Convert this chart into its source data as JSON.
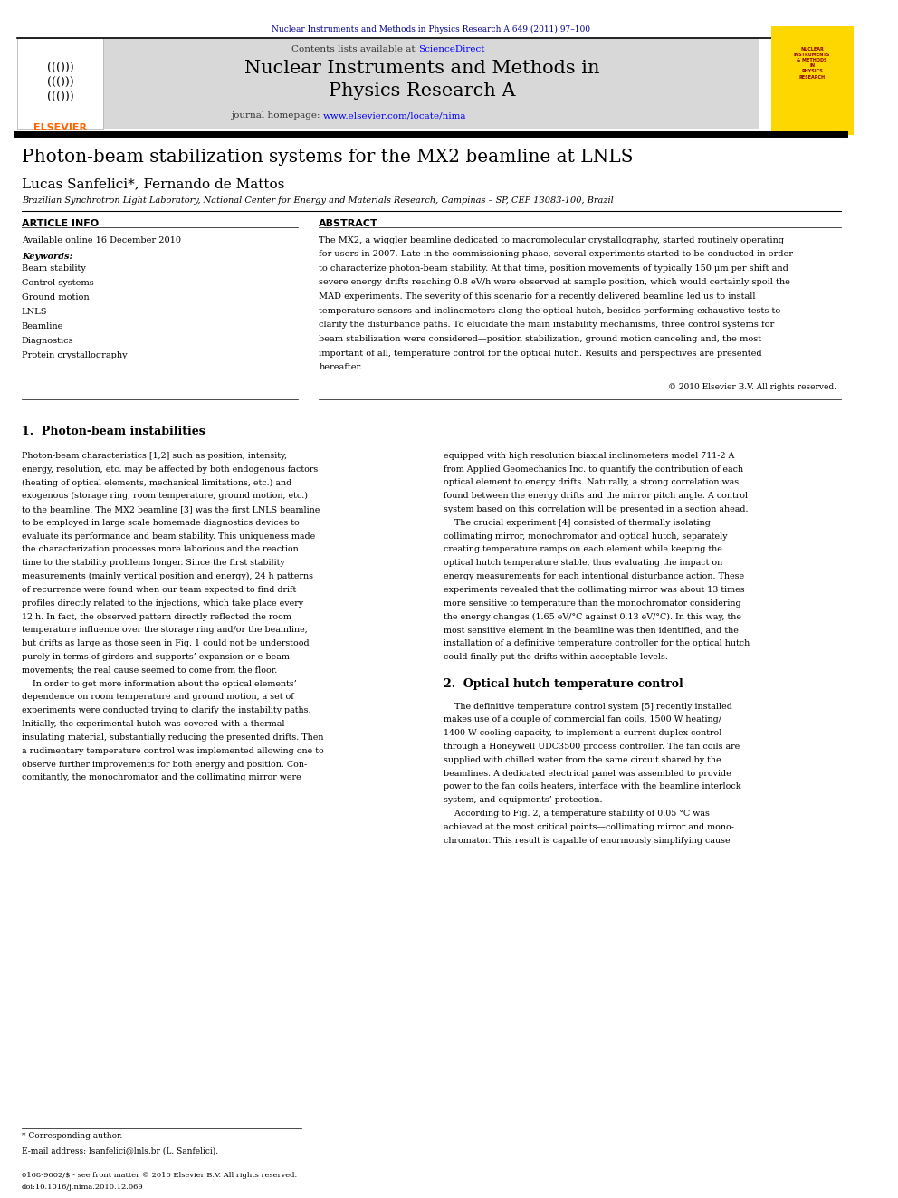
{
  "page_width": 9.92,
  "page_height": 13.23,
  "bg_color": "#ffffff",
  "header_journal_text": "Nuclear Instruments and Methods in Physics Research A 649 (2011) 97–100",
  "header_journal_color": "#00008B",
  "journal_header_bg": "#d8d8d8",
  "journal_title_line1": "Nuclear Instruments and Methods in",
  "journal_title_line2": "Physics Research A",
  "journal_homepage_static": "journal homepage: ",
  "journal_homepage_link": "www.elsevier.com/locate/nima",
  "paper_title": "Photon-beam stabilization systems for the MX2 beamline at LNLS",
  "authors": "Lucas Sanfelici*, Fernando de Mattos",
  "affiliation": "Brazilian Synchrotron Light Laboratory, National Center for Energy and Materials Research, Campinas – SP, CEP 13083-100, Brazil",
  "article_info_header": "ARTICLE INFO",
  "abstract_header": "ABSTRACT",
  "available_online": "Available online 16 December 2010",
  "keywords_label": "Keywords:",
  "keywords": [
    "Beam stability",
    "Control systems",
    "Ground motion",
    "LNLS",
    "Beamline",
    "Diagnostics",
    "Protein crystallography"
  ],
  "copyright": "© 2010 Elsevier B.V. All rights reserved.",
  "section1_title": "1.  Photon-beam instabilities",
  "section2_title": "2.  Optical hutch temperature control",
  "footnote_star": "* Corresponding author.",
  "footnote_email": "E-mail address: lsanfelici@lnls.br (L. Sanfelici).",
  "footer_issn": "0168-9002/$ - see front matter © 2010 Elsevier B.V. All rights reserved.",
  "footer_doi": "doi:10.1016/j.nima.2010.12.069",
  "link_color": "#0000FF",
  "ref_color": "#0000FF",
  "yellow_box_color": "#FFD700",
  "elsevier_orange": "#FF6600",
  "abstract_lines": [
    "The MX2, a wiggler beamline dedicated to macromolecular crystallography, started routinely operating",
    "for users in 2007. Late in the commissioning phase, several experiments started to be conducted in order",
    "to characterize photon-beam stability. At that time, position movements of typically 150 μm per shift and",
    "severe energy drifts reaching 0.8 eV/h were observed at sample position, which would certainly spoil the",
    "MAD experiments. The severity of this scenario for a recently delivered beamline led us to install",
    "temperature sensors and inclinometers along the optical hutch, besides performing exhaustive tests to",
    "clarify the disturbance paths. To elucidate the main instability mechanisms, three control systems for",
    "beam stabilization were considered—position stabilization, ground motion canceling and, the most",
    "important of all, temperature control for the optical hutch. Results and perspectives are presented",
    "hereafter."
  ],
  "col1_lines": [
    "Photon-beam characteristics [1,2] such as position, intensity,",
    "energy, resolution, etc. may be affected by both endogenous factors",
    "(heating of optical elements, mechanical limitations, etc.) and",
    "exogenous (storage ring, room temperature, ground motion, etc.)",
    "to the beamline. The MX2 beamline [3] was the first LNLS beamline",
    "to be employed in large scale homemade diagnostics devices to",
    "evaluate its performance and beam stability. This uniqueness made",
    "the characterization processes more laborious and the reaction",
    "time to the stability problems longer. Since the first stability",
    "measurements (mainly vertical position and energy), 24 h patterns",
    "of recurrence were found when our team expected to find drift",
    "profiles directly related to the injections, which take place every",
    "12 h. In fact, the observed pattern directly reflected the room",
    "temperature influence over the storage ring and/or the beamline,",
    "but drifts as large as those seen in Fig. 1 could not be understood",
    "purely in terms of girders and supports’ expansion or e-beam",
    "movements; the real cause seemed to come from the floor.",
    "    In order to get more information about the optical elements’",
    "dependence on room temperature and ground motion, a set of",
    "experiments were conducted trying to clarify the instability paths.",
    "Initially, the experimental hutch was covered with a thermal",
    "insulating material, substantially reducing the presented drifts. Then",
    "a rudimentary temperature control was implemented allowing one to",
    "observe further improvements for both energy and position. Con-",
    "comitantly, the monochromator and the collimating mirror were"
  ],
  "col2_lines_sec1": [
    "equipped with high resolution biaxial inclinometers model 711-2 A",
    "from Applied Geomechanics Inc. to quantify the contribution of each",
    "optical element to energy drifts. Naturally, a strong correlation was",
    "found between the energy drifts and the mirror pitch angle. A control",
    "system based on this correlation will be presented in a section ahead.",
    "    The crucial experiment [4] consisted of thermally isolating",
    "collimating mirror, monochromator and optical hutch, separately",
    "creating temperature ramps on each element while keeping the",
    "optical hutch temperature stable, thus evaluating the impact on",
    "energy measurements for each intentional disturbance action. These",
    "experiments revealed that the collimating mirror was about 13 times",
    "more sensitive to temperature than the monochromator considering",
    "the energy changes (1.65 eV/°C against 0.13 eV/°C). In this way, the",
    "most sensitive element in the beamline was then identified, and the",
    "installation of a definitive temperature controller for the optical hutch",
    "could finally put the drifts within acceptable levels."
  ],
  "col2_lines_sec2": [
    "    The definitive temperature control system [5] recently installed",
    "makes use of a couple of commercial fan coils, 1500 W heating/",
    "1400 W cooling capacity, to implement a current duplex control",
    "through a Honeywell UDC3500 process controller. The fan coils are",
    "supplied with chilled water from the same circuit shared by the",
    "beamlines. A dedicated electrical panel was assembled to provide",
    "power to the fan coils heaters, interface with the beamline interlock",
    "system, and equipments’ protection.",
    "    According to Fig. 2, a temperature stability of 0.05 °C was",
    "achieved at the most critical points—collimating mirror and mono-",
    "chromator. This result is capable of enormously simplifying cause"
  ]
}
